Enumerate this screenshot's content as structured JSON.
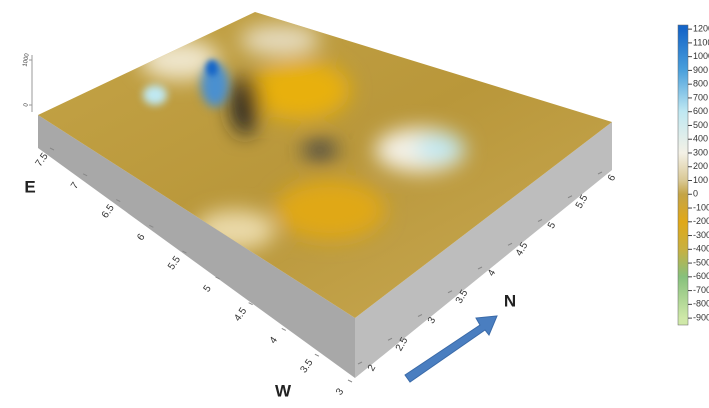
{
  "chart_data": {
    "type": "surface3d",
    "x_label": "E",
    "x_label_end": "W",
    "y_label": "N",
    "xlim": [
      7.5,
      3
    ],
    "xticks": [
      7.5,
      7,
      6.5,
      6,
      5.5,
      5,
      4.5,
      4,
      3.5,
      3
    ],
    "ylim": [
      2,
      6
    ],
    "yticks": [
      2,
      2.5,
      3,
      3.5,
      4,
      4.5,
      5,
      5.5,
      6
    ],
    "zlim": [
      0,
      1000
    ],
    "zticks": [
      0,
      1000
    ],
    "colorbar_lim": [
      -950,
      1230
    ],
    "colorbar_ticks": [
      1200,
      1100,
      1000,
      900,
      800,
      700,
      600,
      500,
      400,
      300,
      200,
      100,
      0,
      -100,
      -200,
      -300,
      -400,
      -500,
      -600,
      -700,
      -800,
      -900
    ],
    "colorscale": [
      [
        1200,
        "#1565c8"
      ],
      [
        900,
        "#4aa0dc"
      ],
      [
        600,
        "#bfe8f2"
      ],
      [
        300,
        "#f4f1e6"
      ],
      [
        100,
        "#d9c894"
      ],
      [
        0,
        "#c4a447"
      ],
      [
        -200,
        "#e0a818"
      ],
      [
        -400,
        "#c8b040"
      ],
      [
        -600,
        "#86c07c"
      ],
      [
        -900,
        "#cfe8a8"
      ]
    ]
  }
}
